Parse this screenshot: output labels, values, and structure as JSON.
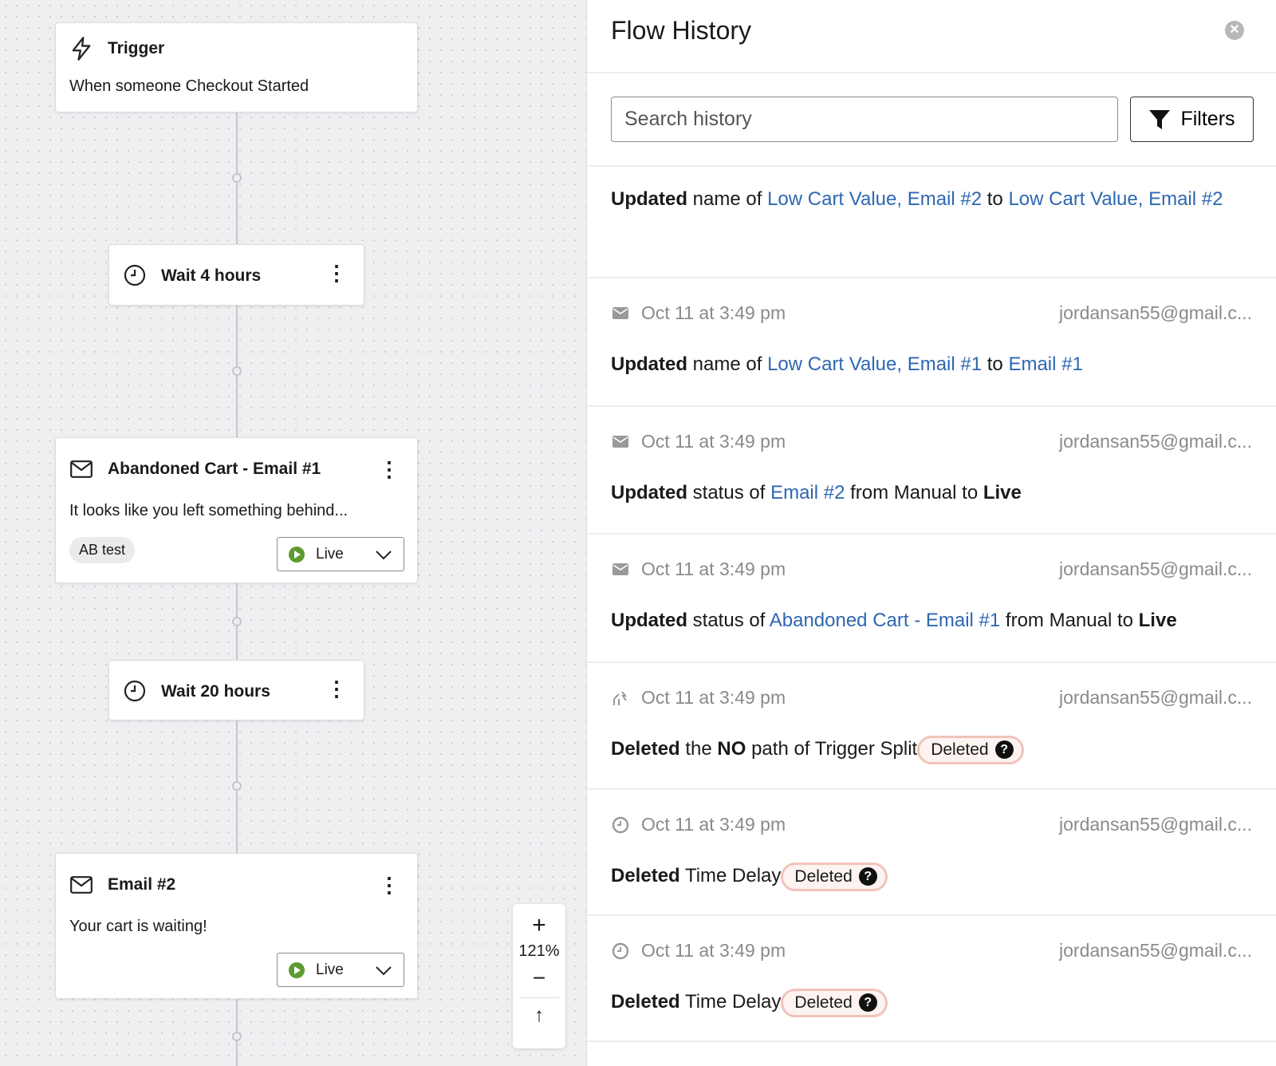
{
  "canvas": {
    "trigger": {
      "title": "Trigger",
      "description": "When someone Checkout Started",
      "icon": "lightning-icon"
    },
    "wait1": {
      "label": "Wait 4 hours",
      "icon": "clock-icon"
    },
    "email1": {
      "title": "Abandoned Cart - Email #1",
      "description": "It looks like you left something behind...",
      "tag": "AB test",
      "status": "Live",
      "icon": "mail-icon"
    },
    "wait2": {
      "label": "Wait 20 hours",
      "icon": "clock-icon"
    },
    "email2": {
      "title": "Email #2",
      "description": "Your cart is waiting!",
      "status": "Live",
      "icon": "mail-icon"
    },
    "zoom": {
      "plus": "+",
      "level": "121%",
      "minus": "−",
      "up": "↑"
    }
  },
  "panel": {
    "title": "Flow History",
    "search_placeholder": "Search history",
    "filters_label": "Filters",
    "items": [
      {
        "segments": [
          {
            "t": "b",
            "v": "Updated"
          },
          {
            "t": "p",
            "v": " name of "
          },
          {
            "t": "a",
            "v": "Low Cart Value, Email #2"
          },
          {
            "t": "p",
            "v": " to "
          },
          {
            "t": "a",
            "v": "Low Cart Value, Email #2"
          }
        ]
      },
      {
        "icon": "mail-icon",
        "time": "Oct 11 at 3:49 pm",
        "user": "jordansan55@gmail.c...",
        "segments": [
          {
            "t": "b",
            "v": "Updated"
          },
          {
            "t": "p",
            "v": " name of "
          },
          {
            "t": "a",
            "v": "Low Cart Value, Email #1"
          },
          {
            "t": "p",
            "v": " to "
          },
          {
            "t": "a",
            "v": "Email #1"
          }
        ]
      },
      {
        "icon": "mail-icon",
        "time": "Oct 11 at 3:49 pm",
        "user": "jordansan55@gmail.c...",
        "segments": [
          {
            "t": "b",
            "v": "Updated"
          },
          {
            "t": "p",
            "v": " status of "
          },
          {
            "t": "a",
            "v": "Email #2"
          },
          {
            "t": "p",
            "v": " from Manual to "
          },
          {
            "t": "b",
            "v": "Live"
          }
        ]
      },
      {
        "icon": "mail-icon",
        "time": "Oct 11 at 3:49 pm",
        "user": "jordansan55@gmail.c...",
        "segments": [
          {
            "t": "b",
            "v": "Updated"
          },
          {
            "t": "p",
            "v": " status of "
          },
          {
            "t": "a",
            "v": "Abandoned Cart - Email #1"
          },
          {
            "t": "p",
            "v": " from Manual to "
          },
          {
            "t": "b",
            "v": "Live"
          }
        ]
      },
      {
        "icon": "split-icon",
        "time": "Oct 11 at 3:49 pm",
        "user": "jordansan55@gmail.c...",
        "segments": [
          {
            "t": "b",
            "v": "Deleted"
          },
          {
            "t": "p",
            "v": " the "
          },
          {
            "t": "b",
            "v": "NO"
          },
          {
            "t": "p",
            "v": " path of Trigger Split"
          },
          {
            "t": "badge",
            "v": "Deleted"
          }
        ]
      },
      {
        "icon": "clock-icon",
        "time": "Oct 11 at 3:49 pm",
        "user": "jordansan55@gmail.c...",
        "segments": [
          {
            "t": "b",
            "v": "Deleted"
          },
          {
            "t": "p",
            "v": " Time Delay"
          },
          {
            "t": "badge",
            "v": "Deleted"
          }
        ]
      },
      {
        "icon": "clock-icon",
        "time": "Oct 11 at 3:49 pm",
        "user": "jordansan55@gmail.c...",
        "segments": [
          {
            "t": "b",
            "v": "Deleted"
          },
          {
            "t": "p",
            "v": " Time Delay"
          },
          {
            "t": "badge",
            "v": "Deleted"
          }
        ]
      }
    ]
  },
  "colors": {
    "link": "#2e67b1",
    "live": "#5d9b2f",
    "badge_border": "#f2c3b8",
    "canvas_bg": "#eeeff1"
  }
}
